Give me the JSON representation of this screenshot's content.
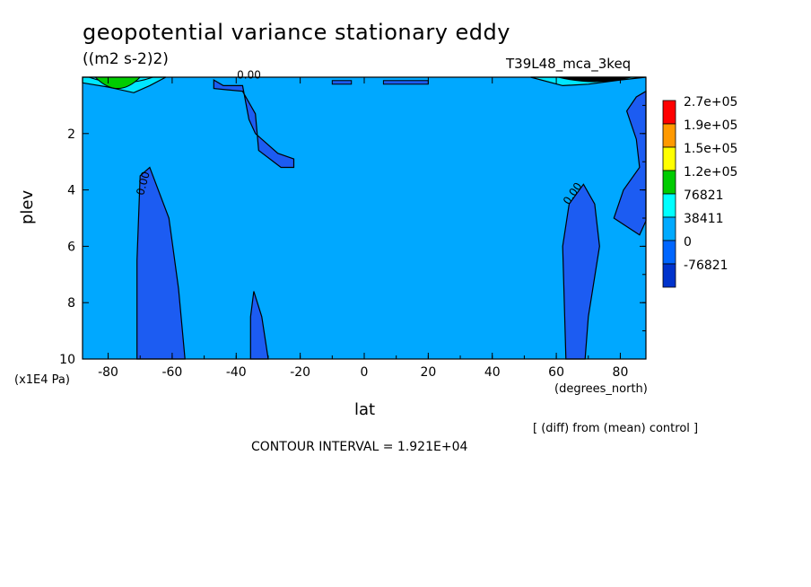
{
  "chart_data": {
    "type": "heatmap",
    "title": "geopotential variance stationary eddy",
    "units": "((m2 s-2)2)",
    "run_label": "T39L48_mca_3keq",
    "xlabel": "lat",
    "x_units": "(degrees_north)",
    "ylabel": "plev",
    "y_units": "(x1E4 Pa)",
    "xlim": [
      -88,
      88
    ],
    "ylim": [
      10,
      0
    ],
    "x_ticks": [
      "-80",
      "-60",
      "-40",
      "-20",
      "0",
      "20",
      "40",
      "60",
      "80"
    ],
    "y_ticks": [
      "2",
      "4",
      "6",
      "8",
      "10"
    ],
    "colorbar": {
      "labels": [
        "2.7e+05",
        "1.9e+05",
        "1.5e+05",
        "1.2e+05",
        "76821",
        "38411",
        "0",
        "-76821"
      ],
      "colors": [
        "#ff0000",
        "#ff9900",
        "#ffff00",
        "#00cc00",
        "#00ffff",
        "#00aaff",
        "#0066ff",
        "#0033cc"
      ]
    },
    "contour_labels": [
      "0.00",
      "0.00",
      "0.00"
    ],
    "contour_interval": "CONTOUR INTERVAL = 1.921E+04",
    "note": "[ (diff) from (mean) control ]",
    "regions": [
      {
        "name": "negative-region-sh-column",
        "value": -19210,
        "outline": [
          [
            -71,
            10
          ],
          [
            -71,
            6.5
          ],
          [
            -70,
            3.5
          ],
          [
            -67,
            3.2
          ],
          [
            -61,
            5
          ],
          [
            -58,
            7.5
          ],
          [
            -56,
            10
          ]
        ]
      },
      {
        "name": "negative-region-upper-tongue",
        "value": -19210,
        "outline": [
          [
            -47,
            0.1
          ],
          [
            -44,
            0.3
          ],
          [
            -38,
            0.3
          ],
          [
            -36,
            1.5
          ],
          [
            -34,
            2
          ],
          [
            -27,
            2.7
          ],
          [
            -22,
            2.9
          ],
          [
            -22,
            3.2
          ],
          [
            -26,
            3.2
          ],
          [
            -33,
            2.6
          ],
          [
            -34,
            1.3
          ],
          [
            -38,
            0.5
          ],
          [
            -47,
            0.4
          ]
        ]
      },
      {
        "name": "negative-region-40s-column",
        "value": -19210,
        "outline": [
          [
            -35.5,
            10
          ],
          [
            -35.5,
            8.5
          ],
          [
            -34.5,
            7.6
          ],
          [
            -32,
            8.5
          ],
          [
            -30,
            10
          ]
        ]
      },
      {
        "name": "negative-region-nh-column",
        "value": -19210,
        "outline": [
          [
            63,
            10
          ],
          [
            62,
            6
          ],
          [
            64,
            4.5
          ],
          [
            68.5,
            3.8
          ],
          [
            72,
            4.5
          ],
          [
            73.5,
            6
          ],
          [
            70,
            8.5
          ],
          [
            69,
            10
          ]
        ]
      },
      {
        "name": "negative-region-polar",
        "value": -19210,
        "outline": [
          [
            88,
            0.5
          ],
          [
            85,
            0.7
          ],
          [
            82,
            1.2
          ],
          [
            85,
            2.2
          ],
          [
            86,
            3.2
          ],
          [
            81,
            4
          ],
          [
            78,
            5
          ],
          [
            86,
            5.6
          ],
          [
            88,
            5.1
          ]
        ]
      },
      {
        "name": "positive-region-sh-top",
        "value": 38411,
        "outline": [
          [
            -88,
            0
          ],
          [
            -88,
            0.2
          ],
          [
            -80,
            0.35
          ],
          [
            -72,
            0.55
          ],
          [
            -67,
            0.3
          ],
          [
            -62,
            0
          ]
        ]
      },
      {
        "name": "positive-region-nh-top",
        "value": 38411,
        "outline": [
          [
            52,
            0
          ],
          [
            62,
            0.3
          ],
          [
            70,
            0.25
          ],
          [
            80,
            0.1
          ],
          [
            88,
            0
          ]
        ]
      }
    ]
  }
}
